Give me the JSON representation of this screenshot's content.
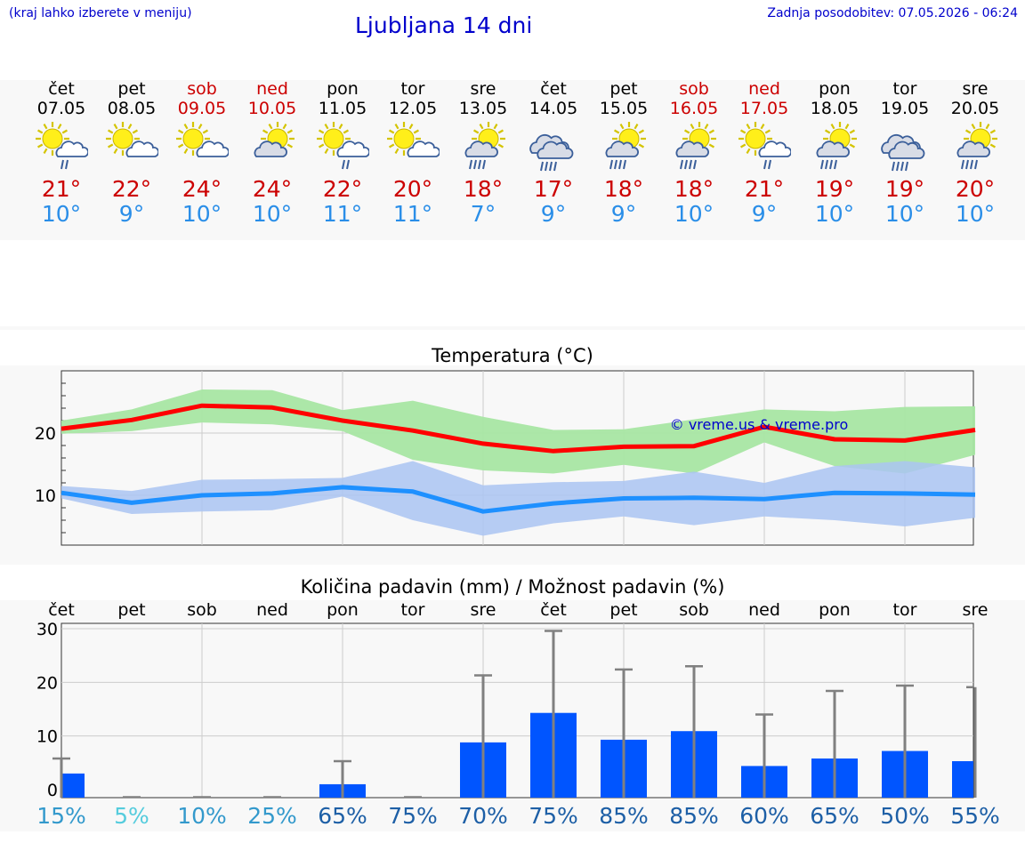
{
  "header": {
    "hint": "(kraj lahko izberete v meniju)",
    "title": "Ljubljana 14 dni",
    "updated": "Zadnja posodobitev: 07.05.2026 - 06:24"
  },
  "days": [
    {
      "name": "čet",
      "date": "07.05",
      "weekend": false,
      "icon": "sun-cloud-rain-icon",
      "max": "21°",
      "min": "10°"
    },
    {
      "name": "pet",
      "date": "08.05",
      "weekend": false,
      "icon": "sun-cloud-icon",
      "max": "22°",
      "min": "9°"
    },
    {
      "name": "sob",
      "date": "09.05",
      "weekend": true,
      "icon": "sun-cloud-icon",
      "max": "24°",
      "min": "10°"
    },
    {
      "name": "ned",
      "date": "10.05",
      "weekend": true,
      "icon": "cloud-sun-icon",
      "max": "24°",
      "min": "10°"
    },
    {
      "name": "pon",
      "date": "11.05",
      "weekend": false,
      "icon": "sun-cloud-rain-icon",
      "max": "22°",
      "min": "11°"
    },
    {
      "name": "tor",
      "date": "12.05",
      "weekend": false,
      "icon": "sun-cloud-icon",
      "max": "20°",
      "min": "11°"
    },
    {
      "name": "sre",
      "date": "13.05",
      "weekend": false,
      "icon": "sun-cloud-heavy-rain-icon",
      "max": "18°",
      "min": "7°"
    },
    {
      "name": "čet",
      "date": "14.05",
      "weekend": false,
      "icon": "cloud-heavy-rain-icon",
      "max": "17°",
      "min": "9°"
    },
    {
      "name": "pet",
      "date": "15.05",
      "weekend": false,
      "icon": "sun-cloud-heavy-rain-icon",
      "max": "18°",
      "min": "9°"
    },
    {
      "name": "sob",
      "date": "16.05",
      "weekend": true,
      "icon": "sun-cloud-heavy-rain-icon",
      "max": "18°",
      "min": "10°"
    },
    {
      "name": "ned",
      "date": "17.05",
      "weekend": true,
      "icon": "sun-cloud-rain-icon",
      "max": "21°",
      "min": "9°"
    },
    {
      "name": "pon",
      "date": "18.05",
      "weekend": false,
      "icon": "sun-cloud-heavy-rain-icon",
      "max": "19°",
      "min": "10°"
    },
    {
      "name": "tor",
      "date": "19.05",
      "weekend": false,
      "icon": "cloud-heavy-rain-icon",
      "max": "19°",
      "min": "10°"
    },
    {
      "name": "sre",
      "date": "20.05",
      "weekend": false,
      "icon": "sun-cloud-heavy-rain-icon",
      "max": "20°",
      "min": "10°"
    }
  ],
  "colors": {
    "max_line": "#ff0000",
    "max_band": "#a8e6a3",
    "min_line": "#1e90ff",
    "min_band": "#aac4f2",
    "bar": "#0055ff",
    "whisker": "#808080",
    "weekend": "#cc0000",
    "link": "#0000cc"
  },
  "chart_data": [
    {
      "type": "line",
      "title": "Temperatura (°C)",
      "watermark": "© vreme.us & vreme.pro",
      "ylim": [
        2,
        30
      ],
      "yticks": [
        10,
        20
      ],
      "x": [
        "07.05",
        "08.05",
        "09.05",
        "10.05",
        "11.05",
        "12.05",
        "13.05",
        "14.05",
        "15.05",
        "16.05",
        "17.05",
        "18.05",
        "19.05",
        "20.05"
      ],
      "series": [
        {
          "role": "max",
          "values": [
            20.7,
            22.1,
            24.4,
            24.1,
            22.0,
            20.4,
            18.3,
            17.1,
            17.8,
            17.9,
            21.0,
            19.0,
            18.8,
            20.5
          ],
          "band_low": [
            19.9,
            20.3,
            21.7,
            21.4,
            20.3,
            15.7,
            14.0,
            13.5,
            14.9,
            13.5,
            18.5,
            14.7,
            13.5,
            16.5
          ],
          "band_high": [
            22.0,
            23.8,
            27.0,
            26.9,
            23.7,
            25.2,
            22.6,
            20.5,
            20.6,
            22.2,
            23.8,
            23.5,
            24.2,
            24.3
          ]
        },
        {
          "role": "min",
          "values": [
            10.4,
            8.8,
            10.0,
            10.3,
            11.3,
            10.6,
            7.4,
            8.7,
            9.5,
            9.6,
            9.4,
            10.4,
            10.3,
            10.1
          ],
          "band_low": [
            9.5,
            7.0,
            7.4,
            7.6,
            9.8,
            6.0,
            3.5,
            5.5,
            6.6,
            5.2,
            6.6,
            6.0,
            5.0,
            6.4
          ],
          "band_high": [
            11.5,
            10.7,
            12.5,
            12.6,
            12.8,
            15.5,
            11.6,
            12.1,
            12.3,
            13.8,
            12.0,
            14.7,
            15.5,
            14.5
          ]
        }
      ]
    },
    {
      "type": "bar",
      "title": "Količina padavin (mm) / Možnost padavin (%)",
      "ylim": [
        -1.5,
        31
      ],
      "yticks": [
        0,
        10,
        20,
        30
      ],
      "categories": [
        "čet",
        "pet",
        "sob",
        "ned",
        "pon",
        "tor",
        "sre",
        "čet",
        "pet",
        "sob",
        "ned",
        "pon",
        "tor",
        "sre"
      ],
      "values": [
        3.0,
        0,
        0,
        0,
        1.0,
        0,
        8.8,
        14.3,
        9.3,
        10.9,
        4.4,
        5.8,
        7.2,
        5.3
      ],
      "upper": [
        5.8,
        0,
        0,
        0,
        5.3,
        0,
        21.3,
        29.6,
        22.4,
        23.0,
        14.0,
        18.4,
        19.4,
        19.1
      ],
      "probability": [
        "15%",
        "5%",
        "10%",
        "25%",
        "65%",
        "75%",
        "70%",
        "75%",
        "85%",
        "85%",
        "60%",
        "65%",
        "50%",
        "55%"
      ],
      "probability_colors": [
        "#3399cc",
        "#55ccdd",
        "#3399cc",
        "#3399cc",
        "#1d5fa6",
        "#1d5fa6",
        "#1d5fa6",
        "#1d5fa6",
        "#1d5fa6",
        "#1d5fa6",
        "#1d5fa6",
        "#1d5fa6",
        "#1d5fa6",
        "#1d5fa6"
      ]
    }
  ]
}
